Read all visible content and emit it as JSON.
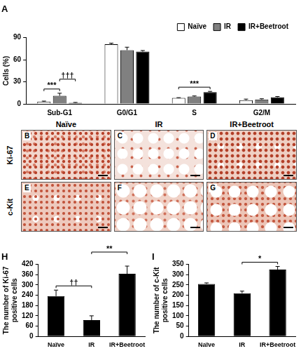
{
  "chart_data": [
    {
      "type": "bar",
      "title": "A",
      "categories": [
        "Sub-G1",
        "G0/G1",
        "S",
        "G2/M"
      ],
      "ylabel": "Cells (%)",
      "series": [
        {
          "name": "Naïve",
          "color": "#ffffff",
          "values": [
            3,
            81,
            8,
            5
          ],
          "errors": [
            0.8,
            1.5,
            0.5,
            1.5
          ]
        },
        {
          "name": "IR",
          "color": "#808080",
          "values": [
            11,
            73,
            10,
            6
          ],
          "errors": [
            3.5,
            4,
            0.8,
            1
          ]
        },
        {
          "name": "IR+Beetroot",
          "color": "#000000",
          "values": [
            1.5,
            71,
            16,
            9
          ],
          "errors": [
            0.5,
            1.5,
            1,
            1
          ]
        }
      ],
      "ylim": [
        0,
        90
      ],
      "yticks": [
        0,
        30,
        60,
        90
      ],
      "grid": false,
      "legend": "top-right",
      "annotations": [
        {
          "text": "***",
          "category": "Sub-G1",
          "from": "Naïve",
          "to": "IR"
        },
        {
          "text": "†††",
          "category": "Sub-G1",
          "from": "IR",
          "to": "IR+Beetroot"
        },
        {
          "text": "***",
          "category": "S",
          "from": "Naïve",
          "to": "IR+Beetroot"
        }
      ]
    },
    {
      "type": "bar",
      "title": "H",
      "categories": [
        "Naïve",
        "IR",
        "IR+Beetroot"
      ],
      "ylabel": "The number of Ki-67 positive cells",
      "values": [
        235,
        95,
        365
      ],
      "errors": [
        35,
        25,
        45
      ],
      "color": "#000000",
      "ylim": [
        0,
        420
      ],
      "yticks": [
        0,
        60,
        120,
        180,
        240,
        300,
        360,
        420
      ],
      "grid": false,
      "annotations": [
        {
          "text": "††",
          "from": "Naïve",
          "to": "IR"
        },
        {
          "text": "**",
          "from": "IR",
          "to": "IR+Beetroot"
        }
      ]
    },
    {
      "type": "bar",
      "title": "I",
      "categories": [
        "Naïve",
        "IR",
        "IR+Beetroot"
      ],
      "ylabel": "The number of c-Kit positive cells",
      "values": [
        255,
        210,
        325
      ],
      "errors": [
        5,
        10,
        15
      ],
      "color": "#000000",
      "ylim": [
        0,
        350
      ],
      "yticks": [
        0,
        50,
        100,
        150,
        200,
        250,
        300,
        350
      ],
      "grid": false,
      "annotations": [
        {
          "text": "*",
          "from": "IR",
          "to": "IR+Beetroot"
        }
      ]
    }
  ],
  "image_panels": {
    "columns": [
      "Naïve",
      "IR",
      "IR+Beetroot"
    ],
    "rows": [
      {
        "label": "Ki-67",
        "panels": [
          "B",
          "C",
          "D"
        ]
      },
      {
        "label": "c-Kit",
        "panels": [
          "E",
          "F",
          "G"
        ]
      }
    ]
  }
}
